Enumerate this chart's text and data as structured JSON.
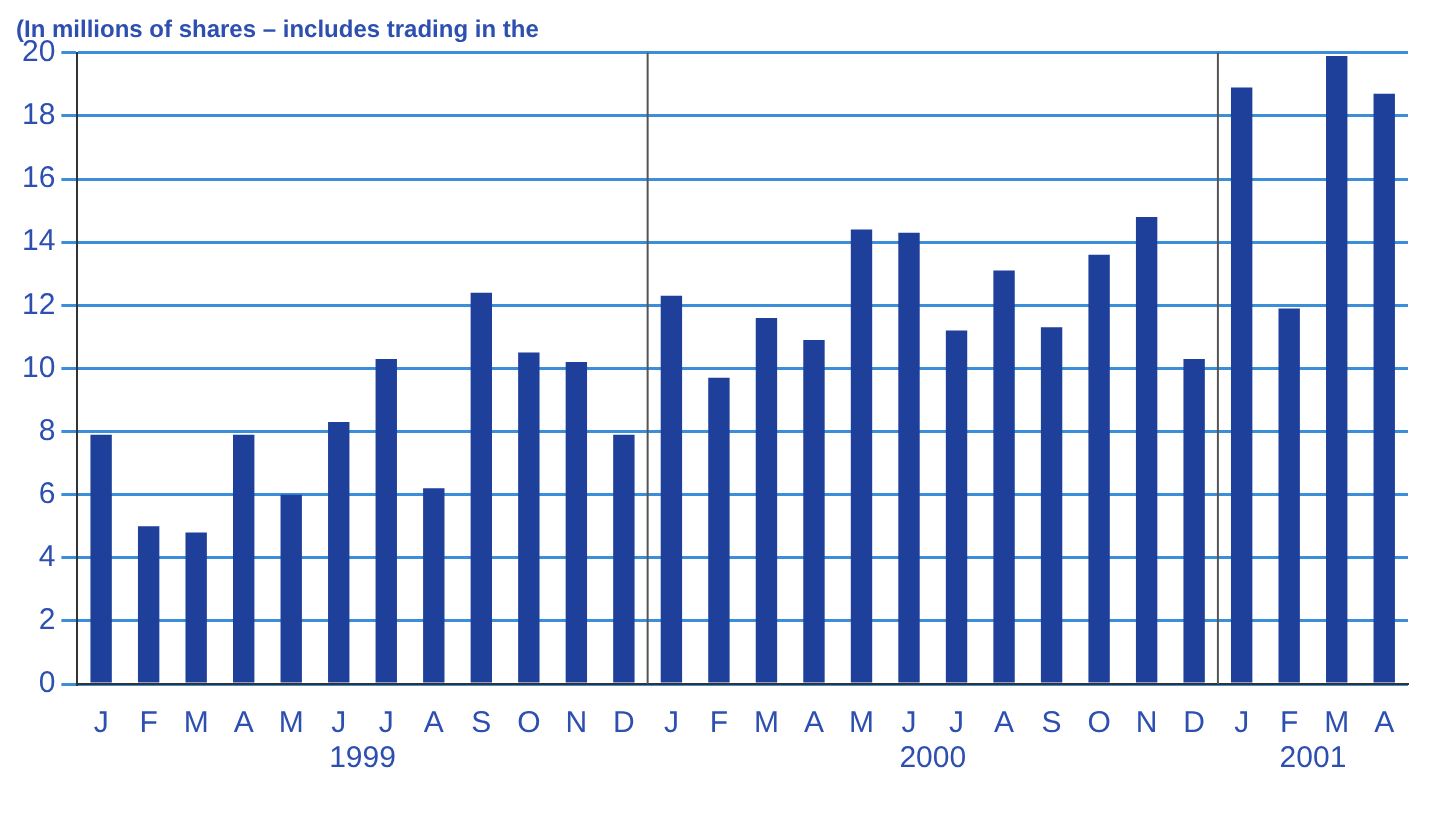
{
  "chart_data": {
    "type": "bar",
    "title": "(In millions of shares – includes trading in the",
    "categories": [
      "J",
      "F",
      "M",
      "A",
      "M",
      "J",
      "J",
      "A",
      "S",
      "O",
      "N",
      "D",
      "J",
      "F",
      "M",
      "A",
      "M",
      "J",
      "J",
      "A",
      "S",
      "O",
      "N",
      "D",
      "J",
      "F",
      "M",
      "A"
    ],
    "values": [
      7.9,
      5.0,
      4.8,
      7.9,
      6.0,
      8.3,
      10.3,
      6.2,
      12.4,
      10.5,
      10.2,
      7.9,
      12.3,
      9.7,
      11.6,
      10.9,
      14.4,
      14.3,
      11.2,
      13.1,
      11.3,
      13.6,
      14.8,
      10.3,
      18.9,
      11.9,
      19.9,
      18.7
    ],
    "color": "#1e3f9a",
    "ylim": [
      0,
      20
    ],
    "yticks": [
      0,
      2,
      4,
      6,
      8,
      10,
      12,
      14,
      16,
      18,
      20
    ],
    "grid": "y",
    "annotations": [
      "1999",
      "2000",
      "2001"
    ]
  }
}
